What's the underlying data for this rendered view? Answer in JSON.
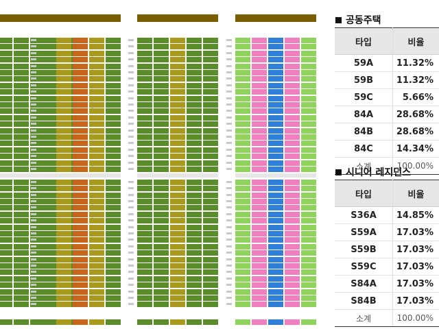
{
  "sections": [
    {
      "title": "공동주택",
      "header": {
        "type": "타입",
        "ratio": "비율"
      },
      "rows": [
        {
          "type": "59A",
          "ratio": "11.32%"
        },
        {
          "type": "59B",
          "ratio": "11.32%"
        },
        {
          "type": "59C",
          "ratio": "5.66%"
        },
        {
          "type": "84A",
          "ratio": "28.68%"
        },
        {
          "type": "84B",
          "ratio": "28.68%"
        },
        {
          "type": "84C",
          "ratio": "14.34%"
        }
      ],
      "subtotal": {
        "label": "소계",
        "ratio": "100.00%"
      }
    },
    {
      "title": "시니어 레지던스",
      "header": {
        "type": "타입",
        "ratio": "비율"
      },
      "rows": [
        {
          "type": "S36A",
          "ratio": "14.85%"
        },
        {
          "type": "S59A",
          "ratio": "17.03%"
        },
        {
          "type": "S59B",
          "ratio": "17.03%"
        },
        {
          "type": "S59C",
          "ratio": "17.03%"
        },
        {
          "type": "S84A",
          "ratio": "17.03%"
        },
        {
          "type": "S84B",
          "ratio": "17.03%"
        }
      ],
      "subtotal": {
        "label": "소계",
        "ratio": "100.00%"
      }
    }
  ],
  "building_colors": {
    "header": "#7a5f00",
    "green": "#5b8c2a",
    "orange": "#c8651c",
    "olive": "#a99a1f",
    "light_green": "#8fd35d",
    "pink": "#f07fbf",
    "blue": "#2f7fd6"
  }
}
